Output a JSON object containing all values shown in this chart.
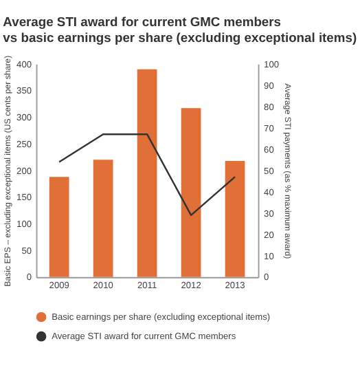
{
  "chart_data": {
    "type": "bar",
    "title": [
      "Average STI award for current GMC members",
      "vs basic earnings per share (excluding exceptional items)"
    ],
    "categories": [
      "2009",
      "2010",
      "2011",
      "2012",
      "2013"
    ],
    "series": [
      {
        "name": "Basic earnings per share (excluding exceptional items)",
        "color": "#e07038",
        "values": [
          188,
          220,
          390,
          317,
          218
        ]
      },
      {
        "name": "Average STI award for current GMC members",
        "color": "#333333",
        "type": "line",
        "axis": "y2",
        "values": [
          54,
          67,
          67,
          29,
          47
        ]
      }
    ],
    "ylabel": "Basic EPS – excluding exceptional items (US cents per share)",
    "y2label": "Average STI payments (as % maximum award)",
    "ylim": [
      0,
      400
    ],
    "yticks": [
      0,
      50,
      100,
      150,
      200,
      250,
      300,
      350,
      400
    ],
    "y2lim": [
      0,
      100
    ],
    "y2ticks": [
      0,
      10,
      20,
      30,
      40,
      50,
      60,
      70,
      80,
      90,
      100
    ],
    "grid": false,
    "legend": "bottom",
    "marker": "none",
    "line_style": "solid"
  }
}
